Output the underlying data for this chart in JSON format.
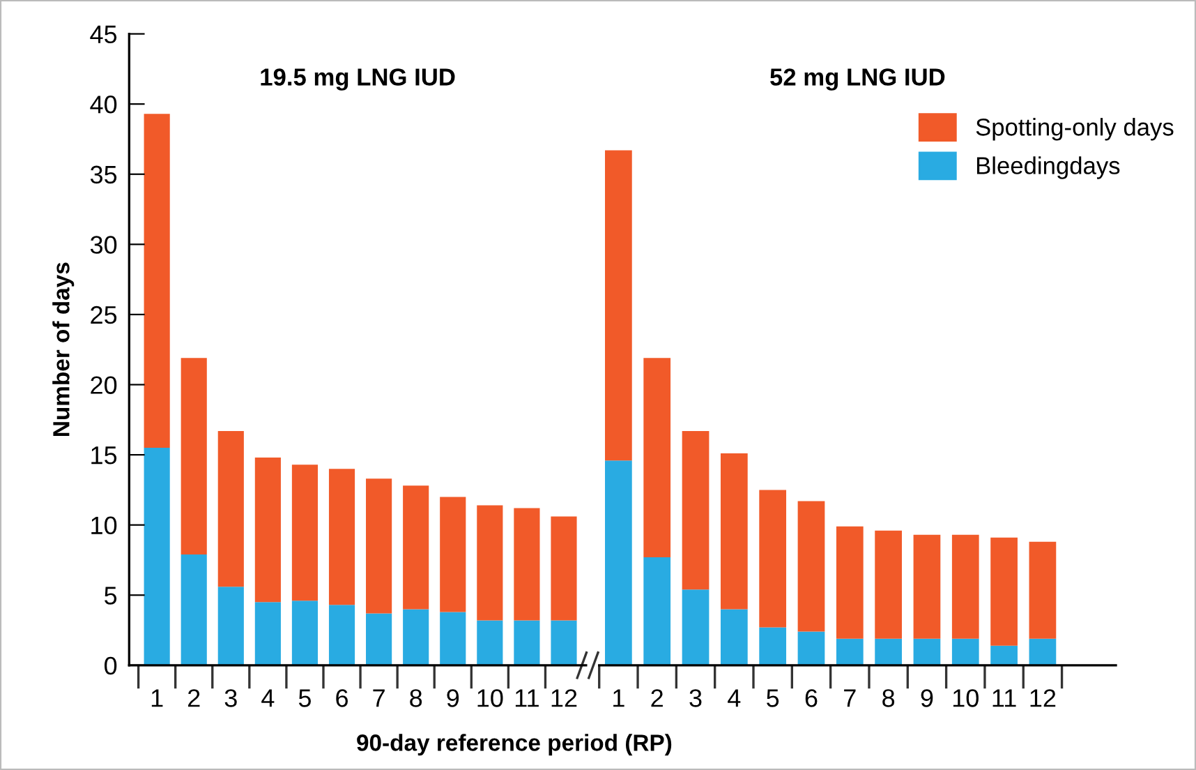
{
  "chart_data": [
    {
      "type": "bar",
      "stacked": true,
      "title": "19.5 mg LNG IUD",
      "ylabel": "Number of days",
      "xlabel": "90-day reference period (RP)",
      "categories": [
        "1",
        "2",
        "3",
        "4",
        "5",
        "6",
        "7",
        "8",
        "9",
        "10",
        "11",
        "12"
      ],
      "series": [
        {
          "name": "Bleedingdays",
          "color": "#29abe2",
          "values": [
            15.5,
            7.9,
            5.6,
            4.5,
            4.6,
            4.3,
            3.7,
            4.0,
            3.8,
            3.2,
            3.2,
            3.2
          ]
        },
        {
          "name": "Spotting-only days",
          "color": "#f15a29",
          "values": [
            23.8,
            14.0,
            11.1,
            10.3,
            9.7,
            9.7,
            9.6,
            8.8,
            8.2,
            8.2,
            8.0,
            7.4
          ]
        }
      ],
      "ylim": [
        0,
        45
      ],
      "yticks": [
        0,
        5,
        10,
        15,
        20,
        25,
        30,
        35,
        40,
        45
      ],
      "grid": false,
      "legend": "top right"
    },
    {
      "type": "bar",
      "stacked": true,
      "title": "52 mg LNG IUD",
      "categories": [
        "1",
        "2",
        "3",
        "4",
        "5",
        "6",
        "7",
        "8",
        "9",
        "10",
        "11",
        "12"
      ],
      "series": [
        {
          "color": "#29abe2",
          "values": [
            14.6,
            7.7,
            5.4,
            4.0,
            2.7,
            2.4,
            1.9,
            1.9,
            1.9,
            1.9,
            1.4,
            1.9
          ]
        },
        {
          "color": "#f15a29",
          "values": [
            22.1,
            14.2,
            11.3,
            11.1,
            9.8,
            9.3,
            8.0,
            7.7,
            7.4,
            7.4,
            7.7,
            6.9
          ]
        }
      ],
      "ylim": [
        0,
        45
      ],
      "yticks": [
        0,
        5,
        10,
        15,
        20,
        25,
        30,
        35,
        40,
        45
      ],
      "tick_labels": "x",
      "grid": false
    }
  ]
}
